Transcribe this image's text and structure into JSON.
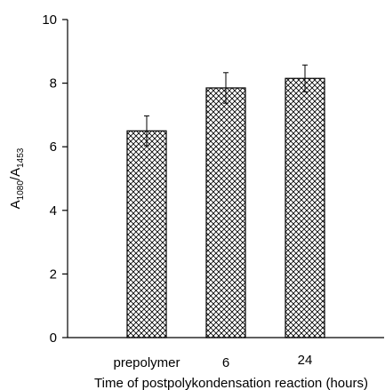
{
  "chart_data": {
    "type": "bar",
    "categories": [
      "prepolymer",
      "6",
      "24"
    ],
    "values": [
      6.5,
      7.85,
      8.15
    ],
    "errors": [
      0.47,
      0.48,
      0.42
    ],
    "xlabel": "Time of postpolykondensation reaction (hours)",
    "ylabel": {
      "base": "A",
      "sub1": "1080",
      "slash": "/A",
      "sub2": "1453"
    },
    "ylim": [
      0,
      10
    ],
    "yticks": [
      0,
      2,
      4,
      6,
      8,
      10
    ],
    "ytick_labels": [
      "0",
      "2",
      "4",
      "6",
      "8",
      "10"
    ],
    "grid": false,
    "bar_pattern": "crosshatch",
    "colors": {
      "bar_fill": "#ffffff",
      "bar_stroke": "#000000",
      "hatch": "#000000",
      "axis": "#000000"
    }
  }
}
